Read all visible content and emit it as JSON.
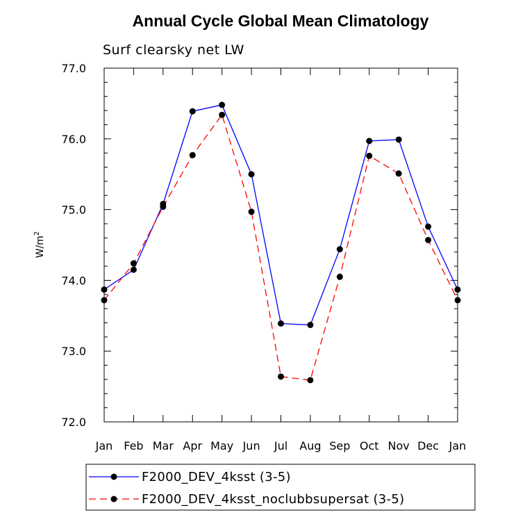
{
  "chart_data": {
    "type": "line",
    "title": "Annual Cycle Global Mean Climatology",
    "subtitle": "Surf clearsky net LW",
    "xlabel": "",
    "ylabel": "W/m",
    "ylabel_superscript": "2",
    "categories": [
      "Jan",
      "Feb",
      "Mar",
      "Apr",
      "May",
      "Jun",
      "Jul",
      "Aug",
      "Sep",
      "Oct",
      "Nov",
      "Dec",
      "Jan"
    ],
    "ylim": [
      72.0,
      77.0
    ],
    "yticks": [
      "72.0",
      "73.0",
      "74.0",
      "75.0",
      "76.0",
      "77.0"
    ],
    "series": [
      {
        "name": "F2000_DEV_4ksst (3-5)",
        "color": "#0000ff",
        "dash": "solid",
        "values": [
          73.87,
          74.15,
          75.08,
          76.39,
          76.48,
          75.5,
          73.39,
          73.37,
          74.44,
          75.97,
          75.99,
          74.76,
          73.87
        ]
      },
      {
        "name": "F2000_DEV_4ksst_noclubbsupersat (3-5)",
        "color": "#ff0000",
        "dash": "dashed",
        "values": [
          73.72,
          74.24,
          75.04,
          75.77,
          76.34,
          74.97,
          72.64,
          72.59,
          74.05,
          75.76,
          75.51,
          74.57,
          73.72
        ]
      }
    ],
    "legend_position": "bottom"
  }
}
